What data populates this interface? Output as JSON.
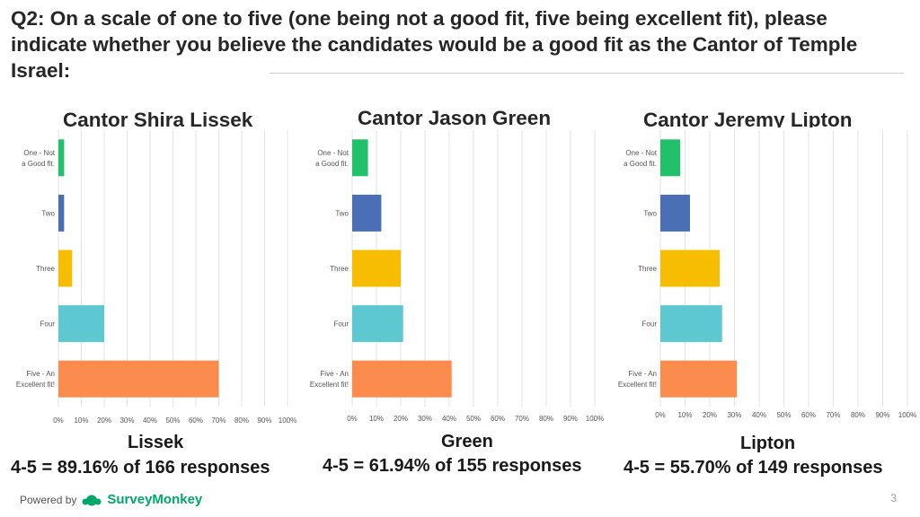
{
  "title": "Q2: On a scale of one to five (one being not a good fit, five being excellent fit), please indicate whether you believe the candidates would be a good fit as the Cantor of Temple Israel:",
  "colors": {
    "one": "#21c06a",
    "two": "#4a6fb5",
    "three": "#f7bd00",
    "four": "#5ec8d0",
    "five": "#fc8c4d",
    "grid": "#e3e3e3",
    "brand": "#00a76a"
  },
  "chart_data": [
    {
      "type": "bar",
      "orientation": "horizontal",
      "title": "Cantor Shira Lissek",
      "categories": [
        "One - Not a Good fit.",
        "Two",
        "Three",
        "Four",
        "Five - An Excellent fit!"
      ],
      "values": [
        2.5,
        2.5,
        6,
        20,
        70
      ],
      "xlim": [
        0,
        100
      ],
      "x_ticks": [
        "0%",
        "10%",
        "20%",
        "30%",
        "40%",
        "50%",
        "60%",
        "70%",
        "80%",
        "90%",
        "100%"
      ],
      "grid": true
    },
    {
      "type": "bar",
      "orientation": "horizontal",
      "title": "Cantor Jason Green",
      "categories": [
        "One - Not a Good fit.",
        "Two",
        "Three",
        "Four",
        "Five - An Excellent fit!"
      ],
      "values": [
        6.5,
        12,
        20,
        21,
        41
      ],
      "xlim": [
        0,
        100
      ],
      "x_ticks": [
        "0%",
        "10%",
        "20%",
        "30%",
        "40%",
        "50%",
        "60%",
        "70%",
        "80%",
        "90%",
        "100%"
      ],
      "grid": true
    },
    {
      "type": "bar",
      "orientation": "horizontal",
      "title": "Cantor Jeremy Lipton",
      "categories": [
        "One - Not a Good fit.",
        "Two",
        "Three",
        "Four",
        "Five - An Excellent fit!"
      ],
      "values": [
        8,
        12,
        24,
        25,
        31
      ],
      "xlim": [
        0,
        100
      ],
      "x_ticks": [
        "0%",
        "10%",
        "20%",
        "30%",
        "40%",
        "50%",
        "60%",
        "70%",
        "80%",
        "90%",
        "100%"
      ],
      "grid": true
    }
  ],
  "candidates": [
    {
      "name": "Lissek",
      "stat": "4-5 = 89.16% of 166 responses"
    },
    {
      "name": "Green",
      "stat": "4-5 = 61.94% of 155 responses"
    },
    {
      "name": "Lipton",
      "stat": "4-5 = 55.70% of 149 responses"
    }
  ],
  "footer": {
    "powered_by": "Powered by",
    "brand": "SurveyMonkey",
    "page_number": "3"
  }
}
